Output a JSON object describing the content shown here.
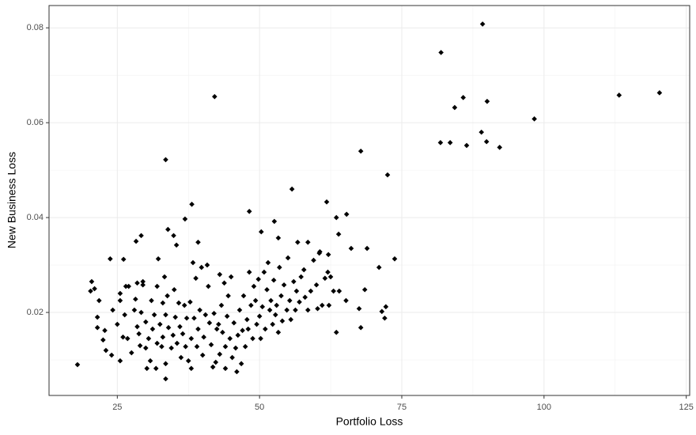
{
  "chart_data": {
    "type": "scatter",
    "x_label": "Portfolio Loss",
    "y_label": "New Business Loss",
    "color": "#000000",
    "grid": true,
    "xlim": [
      13,
      125.6
    ],
    "ylim": [
      0.0025,
      0.0847
    ],
    "xticks": [
      25,
      50,
      75,
      100,
      125
    ],
    "yticks": [
      0.02,
      0.04,
      0.06,
      0.08
    ],
    "x_minor_ticks": [
      37.5,
      62.5,
      87.5,
      112.5
    ],
    "y_minor_ticks": [
      0.01,
      0.03,
      0.05,
      0.07
    ],
    "x": [
      89.2,
      81.9,
      42.1,
      113.2,
      120.3,
      85.8,
      90,
      84.3,
      98.3,
      89,
      81.8,
      83.5,
      89.9,
      86.4,
      92.2,
      33.5,
      67.8,
      72.5,
      55.7,
      61.8,
      38.1,
      48.2,
      65.3,
      63.5,
      36.9,
      52.6,
      50.3,
      63.9,
      33.9,
      34.9,
      29.2,
      28.3,
      53.3,
      39.2,
      35.4,
      56.7,
      66.1,
      68.9,
      23.75,
      26.1,
      32.2,
      73.75,
      60.6,
      62.1,
      18,
      20.5,
      20.3,
      21,
      21.5,
      21.8,
      21.5,
      22.5,
      22.8,
      23,
      24,
      24.2,
      25,
      25.5,
      25.5,
      25.5,
      26,
      26.3,
      26.5,
      27,
      26.8,
      27.5,
      28,
      28.2,
      28.5,
      28.5,
      28.8,
      29,
      29.2,
      29.5,
      29.5,
      30,
      30,
      30.2,
      30.5,
      30.8,
      31,
      31.2,
      31.5,
      31.8,
      32,
      32,
      32.5,
      32.8,
      33,
      33,
      33.3,
      33.5,
      33.5,
      33.5,
      33.8,
      34,
      34.5,
      34.8,
      35,
      35.2,
      35.5,
      35.8,
      36,
      36.2,
      36.5,
      36.8,
      37,
      37.2,
      37.5,
      37.8,
      38,
      38,
      38.3,
      38.5,
      38.8,
      39,
      39.2,
      39.5,
      39.8,
      40,
      40.2,
      40.5,
      40.8,
      41,
      41.2,
      41.5,
      41.8,
      42,
      42.3,
      42.5,
      42.8,
      43,
      43,
      43.3,
      43.5,
      43.8,
      44,
      44,
      44.3,
      44.5,
      44.8,
      45,
      45.2,
      45.5,
      45.8,
      46,
      46.2,
      46.5,
      46.8,
      47,
      47.2,
      47.5,
      47.8,
      48,
      48.2,
      48.5,
      48.8,
      49,
      49.3,
      49.5,
      49.8,
      50,
      50.2,
      50.5,
      50.8,
      51,
      51.3,
      51.5,
      51.8,
      52,
      52.3,
      52.5,
      52.8,
      53,
      53.3,
      53.5,
      53.8,
      54,
      54.3,
      54.8,
      55,
      55.3,
      55.5,
      56,
      56.3,
      56.5,
      57,
      57.3,
      57.8,
      58,
      58.5,
      59,
      59.5,
      60,
      60.2,
      60.5,
      61,
      61.5,
      62,
      62.2,
      62.5,
      63,
      63.5,
      64,
      65.2,
      67.5,
      67.8,
      68.5,
      71,
      71.5,
      72,
      72.2,
      58.5
    ],
    "values": [
      0.0808,
      0.0748,
      0.0655,
      0.0658,
      0.0663,
      0.0653,
      0.0645,
      0.0632,
      0.0608,
      0.058,
      0.0558,
      0.0558,
      0.056,
      0.0552,
      0.0548,
      0.0522,
      0.054,
      0.049,
      0.046,
      0.0433,
      0.0428,
      0.0413,
      0.0407,
      0.04,
      0.0397,
      0.0392,
      0.037,
      0.0365,
      0.0375,
      0.0362,
      0.0362,
      0.035,
      0.0357,
      0.0348,
      0.0342,
      0.0348,
      0.0335,
      0.0335,
      0.0313,
      0.0312,
      0.0313,
      0.0313,
      0.0328,
      0.0322,
      0.009,
      0.0265,
      0.0245,
      0.025,
      0.019,
      0.0225,
      0.0168,
      0.0142,
      0.0162,
      0.012,
      0.011,
      0.0205,
      0.0175,
      0.0225,
      0.024,
      0.0098,
      0.0148,
      0.0195,
      0.0255,
      0.0255,
      0.0145,
      0.0115,
      0.0205,
      0.0228,
      0.0262,
      0.017,
      0.0155,
      0.013,
      0.02,
      0.0258,
      0.0265,
      0.018,
      0.0125,
      0.0082,
      0.0145,
      0.0098,
      0.0225,
      0.0165,
      0.0195,
      0.0082,
      0.0135,
      0.0255,
      0.0175,
      0.0128,
      0.022,
      0.0148,
      0.0275,
      0.006,
      0.0195,
      0.0092,
      0.0235,
      0.0168,
      0.0125,
      0.0152,
      0.0248,
      0.019,
      0.0135,
      0.022,
      0.017,
      0.0105,
      0.0155,
      0.0215,
      0.0128,
      0.0188,
      0.0098,
      0.0222,
      0.0082,
      0.0145,
      0.0305,
      0.0188,
      0.0272,
      0.0128,
      0.0165,
      0.0205,
      0.0295,
      0.011,
      0.0148,
      0.0195,
      0.03,
      0.0255,
      0.0178,
      0.0132,
      0.0085,
      0.0198,
      0.0095,
      0.0165,
      0.0175,
      0.028,
      0.0112,
      0.0215,
      0.0158,
      0.0262,
      0.0128,
      0.0082,
      0.0192,
      0.0235,
      0.0145,
      0.0275,
      0.0105,
      0.0178,
      0.0125,
      0.0075,
      0.0152,
      0.0205,
      0.0092,
      0.0162,
      0.0235,
      0.0128,
      0.0185,
      0.0165,
      0.0285,
      0.0215,
      0.0145,
      0.0255,
      0.0225,
      0.0175,
      0.027,
      0.0192,
      0.0145,
      0.0212,
      0.0285,
      0.0165,
      0.0248,
      0.0305,
      0.0205,
      0.0225,
      0.0175,
      0.0268,
      0.0195,
      0.0215,
      0.0158,
      0.0295,
      0.0235,
      0.0182,
      0.0258,
      0.0205,
      0.0315,
      0.0225,
      0.0185,
      0.0265,
      0.0205,
      0.0245,
      0.0222,
      0.0275,
      0.029,
      0.0232,
      0.0205,
      0.0245,
      0.031,
      0.0258,
      0.0208,
      0.0325,
      0.0215,
      0.0272,
      0.0285,
      0.0215,
      0.0275,
      0.0245,
      0.0158,
      0.0245,
      0.0225,
      0.0208,
      0.0168,
      0.0248,
      0.0295,
      0.0202,
      0.0188,
      0.0212,
      0.0348
    ]
  }
}
